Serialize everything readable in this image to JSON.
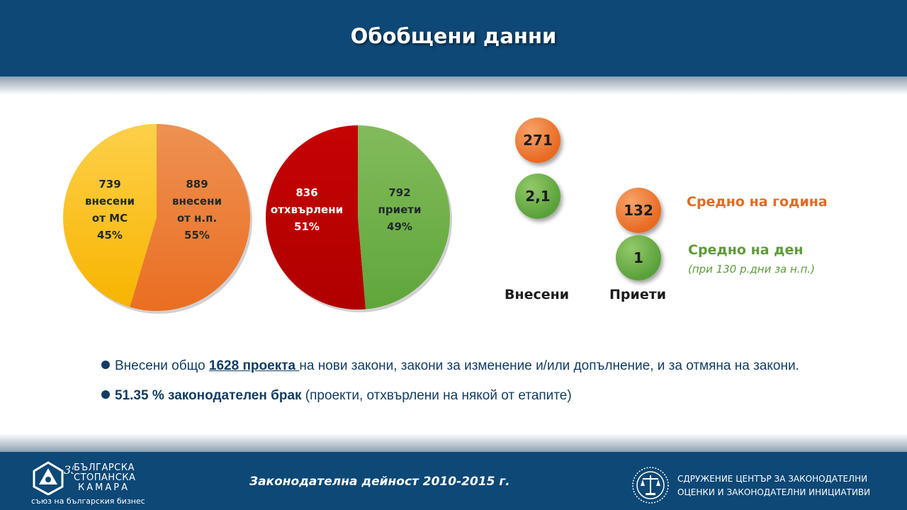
{
  "title": "Обобщени данни",
  "chart_data": [
    {
      "type": "pie",
      "title": "",
      "slices": [
        {
          "label": "739 внесени от МС",
          "value": 739,
          "percent": 45,
          "color": "#f9b61d"
        },
        {
          "label": "889 внесени от н.п.",
          "value": 889,
          "percent": 55,
          "color": "#ec7a34"
        }
      ],
      "slice_text": [
        [
          "739",
          "внесени",
          "от МС",
          "45%"
        ],
        [
          "889",
          "внесени",
          "от н.п.",
          "55%"
        ]
      ]
    },
    {
      "type": "pie",
      "title": "",
      "slices": [
        {
          "label": "836 отхвърлени",
          "value": 836,
          "percent": 51,
          "color": "#c00000"
        },
        {
          "label": "792 приети",
          "value": 792,
          "percent": 49,
          "color": "#6cb044"
        }
      ],
      "slice_text": [
        [
          "836",
          "отхвърлени",
          "51%"
        ],
        [
          "792",
          "приети",
          "49%"
        ]
      ]
    }
  ],
  "stats": {
    "submitted_year": "271",
    "submitted_day": "2,1",
    "adopted_year": "132",
    "adopted_day": "1",
    "submitted_label": "Внесени",
    "adopted_label": "Приети",
    "legend_year": "Средно на година",
    "legend_day": "Средно на ден",
    "legend_note": "(при 130 р.дни за н.п.)"
  },
  "bullets": {
    "b1_pre": "Внесени общо ",
    "b1_bold": "1628 проекта ",
    "b1_post": "на нови закони, закони за изменение и/или допълнение, и за отмяна на закони.",
    "b2_bold": "51.35 % законодателен брак",
    "b2_post": " (проекти, отхвърлени на някой от етапите)"
  },
  "footer": {
    "center": "Законодателна дейност 2010-2015 г.",
    "bcc_line1": "БЪЛГАРСКА",
    "bcc_line2": "СТОПАНСКА",
    "bcc_line3": "КАМАРА",
    "bcc_tagline": "съюз на българския бизнес",
    "org_line1": "СДРУЖЕНИЕ ЦЕНТЪР ЗА ЗАКОНОДАТЕЛНИ",
    "org_line2": "ОЦЕНКИ И ЗАКОНОДАТЕЛНИ ИНИЦИАТИВИ"
  },
  "colors": {
    "brand": "#0d4876",
    "orange": "#e06b23",
    "green": "#5e9a3a"
  }
}
